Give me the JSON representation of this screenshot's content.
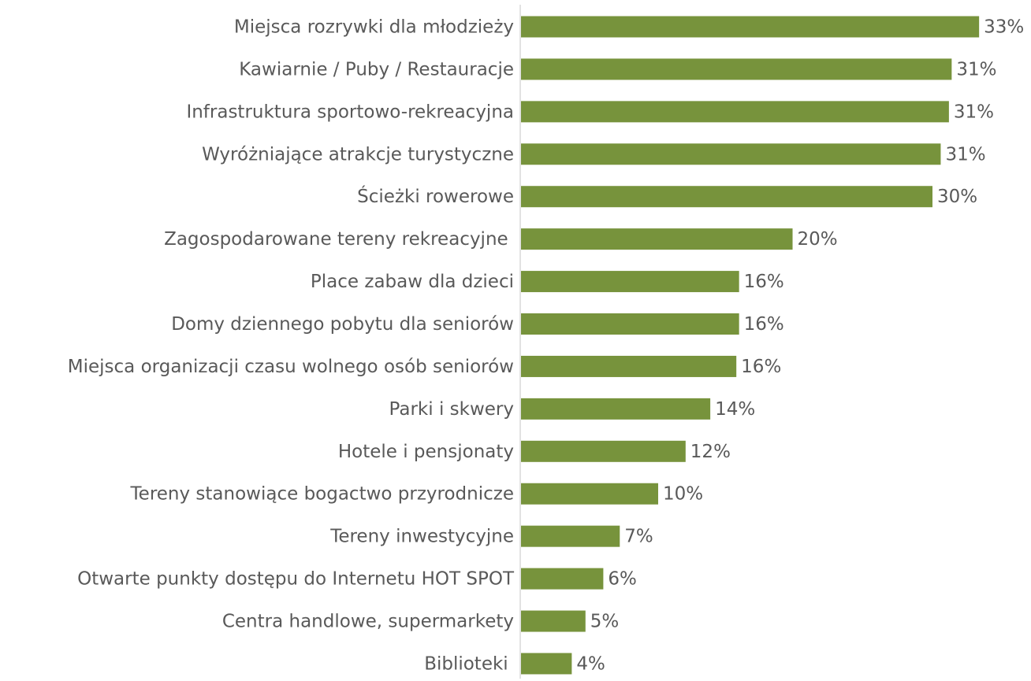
{
  "chart_data": {
    "type": "bar",
    "orientation": "horizontal",
    "color": "#77933c",
    "categories": [
      "Miejsca rozrywki dla młodzieży",
      "Kawiarnie / Puby / Restauracje",
      "Infrastruktura sportowo-rekreacyjna",
      "Wyróżniające atrakcje turystyczne",
      "Ścieżki rowerowe",
      "Zagospodarowane tereny rekreacyjne ",
      "Place zabaw dla dzieci",
      "Domy dziennego pobytu dla seniorów",
      "Miejsca organizacji czasu wolnego osób seniorów",
      "Parki i skwery",
      "Hotele i pensjonaty",
      "Tereny stanowiące bogactwo przyrodnicze",
      "Tereny inwestycyjne",
      "Otwarte punkty dostępu do Internetu HOT SPOT",
      "Centra handlowe, supermarkety",
      "Biblioteki "
    ],
    "values": [
      33.4,
      31.4,
      31.2,
      30.6,
      30.0,
      19.8,
      15.9,
      15.9,
      15.7,
      13.8,
      12.0,
      10.0,
      7.2,
      6.0,
      4.7,
      3.7
    ],
    "value_labels": [
      "33%",
      "31%",
      "31%",
      "31%",
      "30%",
      "20%",
      "16%",
      "16%",
      "16%",
      "14%",
      "12%",
      "10%",
      "7%",
      "6%",
      "5%",
      "4%"
    ]
  }
}
